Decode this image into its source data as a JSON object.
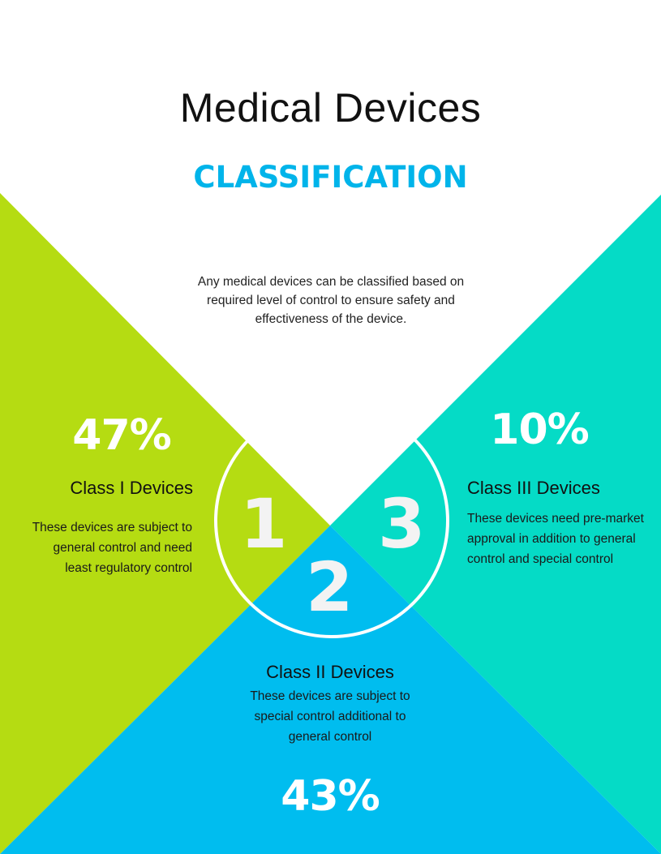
{
  "header": {
    "title": "Medical Devices",
    "subtitle": "CLASSIFICATION",
    "intro": "Any medical devices can be classified based on required level of control to ensure safety and effectiveness of the device."
  },
  "classes": [
    {
      "number": "1",
      "percent": "47%",
      "title": "Class I Devices",
      "description": "These devices are subject to general control and need least regulatory control",
      "color": "#b5dc12"
    },
    {
      "number": "2",
      "percent": "43%",
      "title": "Class II Devices",
      "description": "These devices are subject to special control additional to general control",
      "color": "#00bdef"
    },
    {
      "number": "3",
      "percent": "10%",
      "title": "Class III Devices",
      "description": "These devices need pre-market approval in addition to general control and special control",
      "color": "#05dbc6"
    }
  ],
  "colors": {
    "accent": "#00b4ea",
    "background": "#ffffff"
  }
}
